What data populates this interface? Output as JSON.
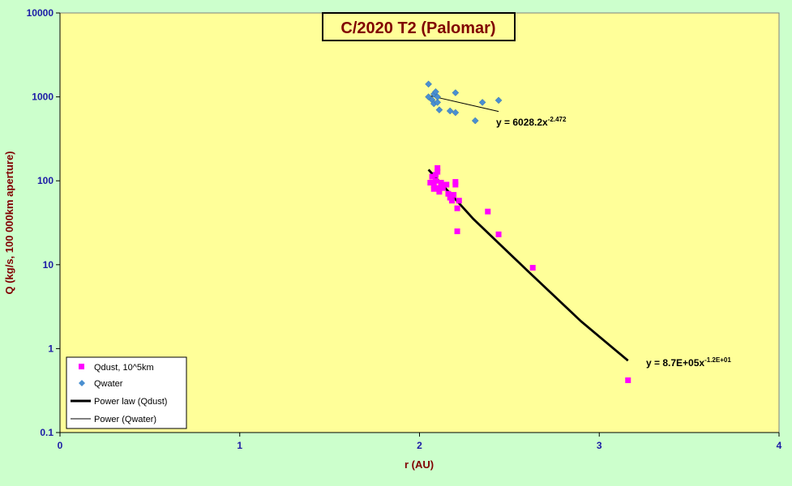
{
  "chart_data": {
    "type": "scatter",
    "title": "C/2020 T2 (Palomar)",
    "xlabel": "r (AU)",
    "ylabel": "Q (kg/s, 100 000km aperture)",
    "xlim": [
      0,
      4
    ],
    "ylim": [
      0.1,
      10000
    ],
    "yscale": "log",
    "grid": false,
    "legend_position": "bottom-left",
    "x_ticks": [
      "0",
      "1",
      "2",
      "3",
      "4"
    ],
    "y_ticks": [
      "0.1",
      "1",
      "10",
      "100",
      "1000",
      "10000"
    ],
    "colors": {
      "plot_background": "#ffff99",
      "page_background": "#ccffcc",
      "qdust": "#ff00ff",
      "qwater": "#4a8fd0",
      "title_text": "#800000",
      "tick_text": "#1a1aa6"
    },
    "series": [
      {
        "name": "Qdust, 10^5km",
        "kind": "scatter",
        "marker": "square",
        "points": [
          [
            2.06,
            95
          ],
          [
            2.07,
            112
          ],
          [
            2.08,
            88
          ],
          [
            2.08,
            80
          ],
          [
            2.09,
            100
          ],
          [
            2.09,
            118
          ],
          [
            2.1,
            142
          ],
          [
            2.1,
            128
          ],
          [
            2.1,
            82
          ],
          [
            2.11,
            74
          ],
          [
            2.12,
            95
          ],
          [
            2.13,
            82
          ],
          [
            2.15,
            90
          ],
          [
            2.16,
            70
          ],
          [
            2.17,
            63
          ],
          [
            2.18,
            58
          ],
          [
            2.19,
            68
          ],
          [
            2.2,
            97
          ],
          [
            2.2,
            90
          ],
          [
            2.21,
            47
          ],
          [
            2.21,
            25
          ],
          [
            2.22,
            58
          ],
          [
            2.38,
            43
          ],
          [
            2.44,
            23
          ],
          [
            2.63,
            9.2
          ],
          [
            3.16,
            0.42
          ]
        ]
      },
      {
        "name": "Qwater",
        "kind": "scatter",
        "marker": "diamond",
        "points": [
          [
            2.05,
            1420
          ],
          [
            2.05,
            1000
          ],
          [
            2.07,
            920
          ],
          [
            2.08,
            1080
          ],
          [
            2.08,
            830
          ],
          [
            2.09,
            1150
          ],
          [
            2.1,
            860
          ],
          [
            2.1,
            1000
          ],
          [
            2.11,
            700
          ],
          [
            2.17,
            680
          ],
          [
            2.2,
            650
          ],
          [
            2.2,
            1120
          ],
          [
            2.31,
            520
          ],
          [
            2.35,
            860
          ],
          [
            2.44,
            910
          ]
        ]
      },
      {
        "name": "Power law (Qdust)",
        "kind": "fit",
        "style": "thick",
        "x_range": [
          2.05,
          3.16
        ],
        "points": [
          [
            2.05,
            136
          ],
          [
            2.3,
            35
          ],
          [
            2.6,
            8.5
          ],
          [
            2.9,
            2.1
          ],
          [
            3.16,
            0.72
          ]
        ]
      },
      {
        "name": "Power (Qwater)",
        "kind": "fit",
        "style": "thin",
        "x_range": [
          2.05,
          2.44
        ],
        "points": [
          [
            2.05,
            1040
          ],
          [
            2.44,
            670
          ]
        ]
      }
    ],
    "annotations": {
      "water_fit": {
        "base": "y = 6028.2x",
        "exponent": "-2.472"
      },
      "dust_fit": {
        "base": "y = 8.7E+05x",
        "exponent": "-1.2E+01"
      }
    }
  }
}
